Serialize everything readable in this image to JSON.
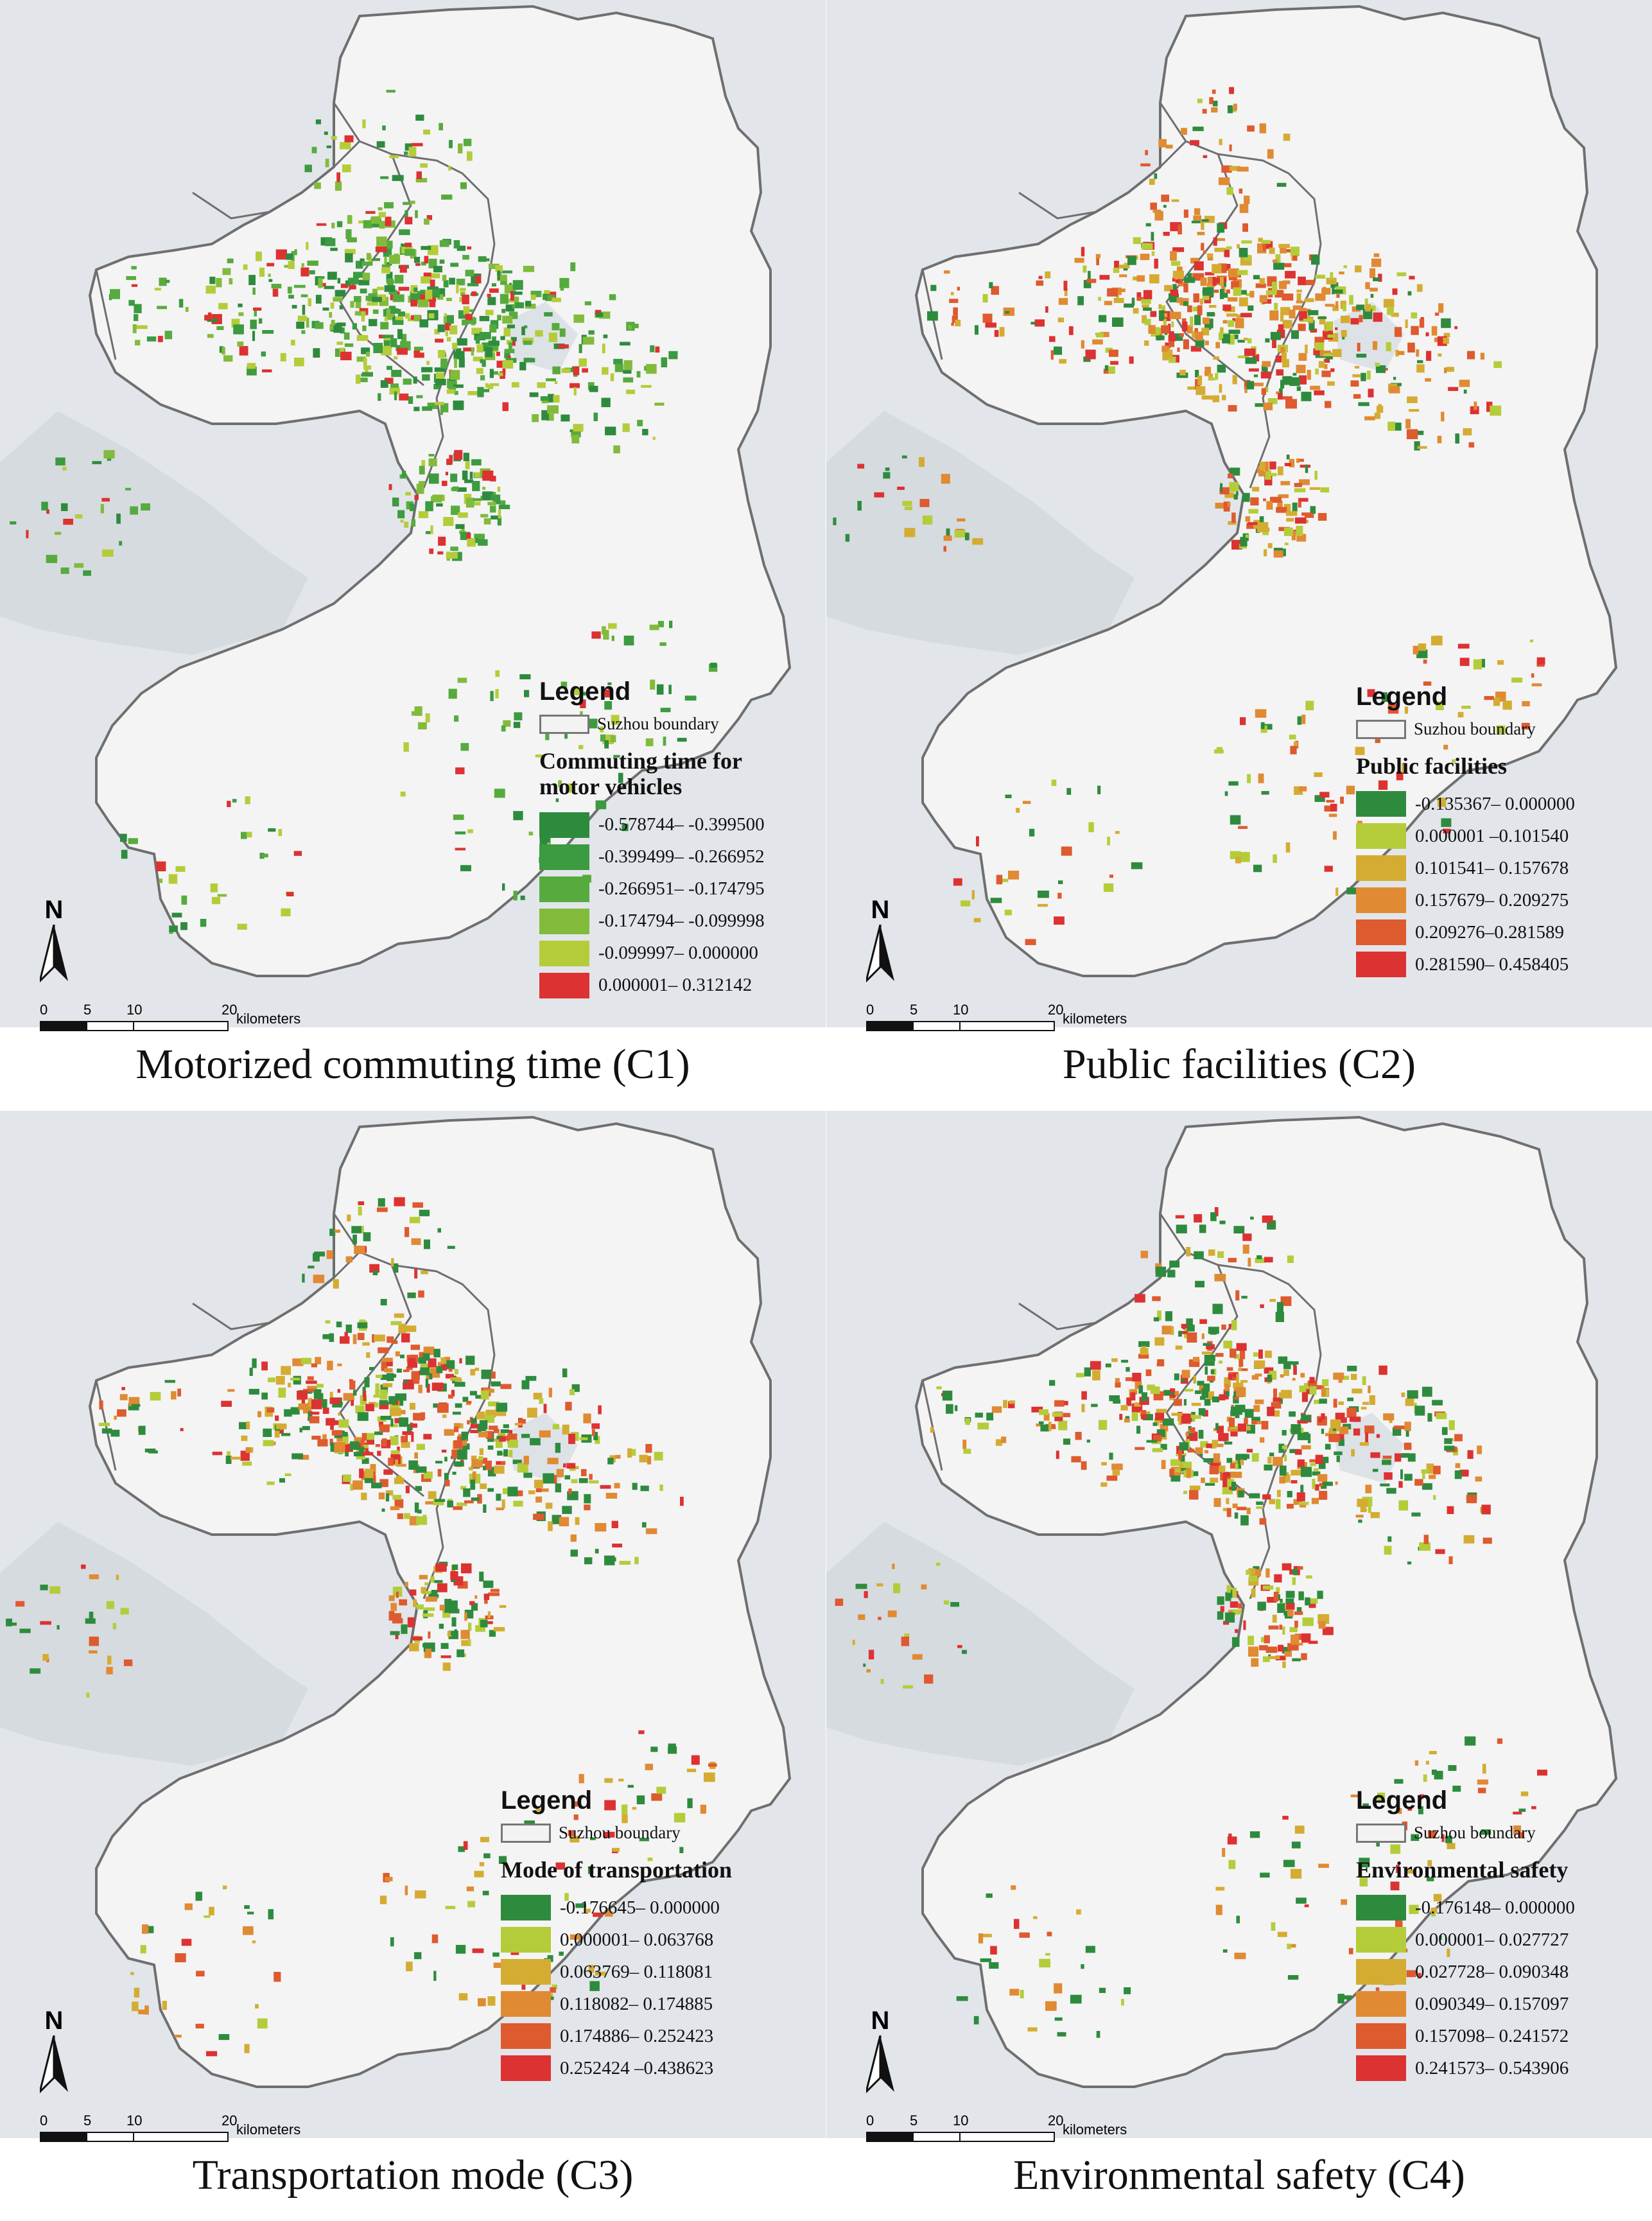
{
  "legend_heading": "Legend",
  "boundary_label": "Suzhou boundary",
  "north_label": "N",
  "scale": {
    "ticks": [
      "0",
      "5",
      "10",
      "20"
    ],
    "unit": "kilometers"
  },
  "colors": {
    "water": "#e2e6ea",
    "land": "#f4f4f4",
    "boundary": "#6f6f6f",
    "classes": [
      "#2e8b3e",
      "#b5cc3a",
      "#d4ac32",
      "#e08a33",
      "#de5a2f",
      "#dc3232"
    ],
    "c1_classes": [
      "#2e8b3e",
      "#3c9a40",
      "#57ab3e",
      "#82bb3c",
      "#b5cc3a",
      "#dc3232"
    ]
  },
  "panels": [
    {
      "id": "c1",
      "caption": "Motorized commuting time (C1)",
      "variable_title": "Commuting time for\nmotor vehicles",
      "classes": [
        "-0.578744– -0.399500",
        "-0.399499– -0.266952",
        "-0.266951– -0.174795",
        "-0.174794– -0.099998",
        "-0.099997– 0.000000",
        "0.000001– 0.312142"
      ]
    },
    {
      "id": "c2",
      "caption": "Public facilities (C2)",
      "variable_title": "Public facilities",
      "classes": [
        "-0.135367– 0.000000",
        "0.000001 –0.101540",
        "0.101541– 0.157678",
        "0.157679– 0.209275",
        "0.209276–0.281589",
        "0.281590– 0.458405"
      ]
    },
    {
      "id": "c3",
      "caption": "Transportation mode (C3)",
      "variable_title": "Mode of transportation",
      "classes": [
        "-0.176645– 0.000000",
        "0.000001– 0.063768",
        "0.063769– 0.118081",
        "0.118082– 0.174885",
        "0.174886– 0.252423",
        "0.252424 –0.438623"
      ]
    },
    {
      "id": "c4",
      "caption": "Environmental safety (C4)",
      "variable_title": "Environmental safety",
      "classes": [
        "-0.176148– 0.000000",
        "0.000001– 0.027727",
        "0.027728– 0.090348",
        "0.090349– 0.157097",
        "0.157098– 0.241572",
        "0.241573– 0.543906"
      ]
    }
  ]
}
